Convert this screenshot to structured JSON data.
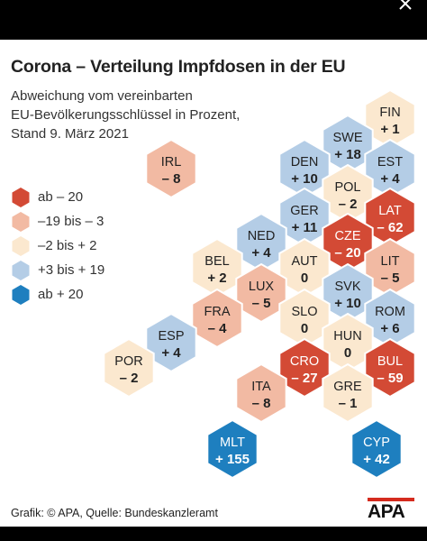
{
  "title": "Corona – Verteilung Impfdosen in der EU",
  "subtitle": {
    "line1": "Abweichung vom vereinbarten",
    "line2": "EU-Bevölkerungsschlüssel in Prozent,",
    "line3": "Stand 9. März 2021"
  },
  "legend": [
    {
      "label": "ab – 20",
      "color": "#d34a35"
    },
    {
      "label": "–19 bis – 3",
      "color": "#f2baa3"
    },
    {
      "label": "–2 bis + 2",
      "color": "#fbe8cf"
    },
    {
      "label": "+3 bis + 19",
      "color": "#b4cde6"
    },
    {
      "label": "ab + 20",
      "color": "#1e7fbf"
    }
  ],
  "footer": "Grafik: © APA, Quelle: Bundeskanzleramt",
  "logo": "APA",
  "chart_data": {
    "type": "hexmap",
    "title": "Corona – Verteilung Impfdosen in der EU",
    "unit": "Prozent",
    "countries": [
      {
        "code": "FIN",
        "label": "+ 1",
        "value": 1
      },
      {
        "code": "SWE",
        "label": "+ 18",
        "value": 18
      },
      {
        "code": "IRL",
        "label": "– 8",
        "value": -8
      },
      {
        "code": "DEN",
        "label": "+ 10",
        "value": 10
      },
      {
        "code": "EST",
        "label": "+ 4",
        "value": 4
      },
      {
        "code": "POL",
        "label": "– 2",
        "value": -2
      },
      {
        "code": "GER",
        "label": "+ 11",
        "value": 11
      },
      {
        "code": "LAT",
        "label": "– 62",
        "value": -62
      },
      {
        "code": "NED",
        "label": "+ 4",
        "value": 4
      },
      {
        "code": "CZE",
        "label": "– 20",
        "value": -20
      },
      {
        "code": "BEL",
        "label": "+ 2",
        "value": 2
      },
      {
        "code": "AUT",
        "label": "0",
        "value": 0
      },
      {
        "code": "LIT",
        "label": "– 5",
        "value": -5
      },
      {
        "code": "LUX",
        "label": "– 5",
        "value": -5
      },
      {
        "code": "SVK",
        "label": "+ 10",
        "value": 10
      },
      {
        "code": "FRA",
        "label": "– 4",
        "value": -4
      },
      {
        "code": "SLO",
        "label": "0",
        "value": 0
      },
      {
        "code": "ROM",
        "label": "+ 6",
        "value": 6
      },
      {
        "code": "ESP",
        "label": "+ 4",
        "value": 4
      },
      {
        "code": "HUN",
        "label": "0",
        "value": 0
      },
      {
        "code": "POR",
        "label": "– 2",
        "value": -2
      },
      {
        "code": "CRO",
        "label": "– 27",
        "value": -27
      },
      {
        "code": "BUL",
        "label": "– 59",
        "value": -59
      },
      {
        "code": "ITA",
        "label": "– 8",
        "value": -8
      },
      {
        "code": "GRE",
        "label": "– 1",
        "value": -1
      },
      {
        "code": "MLT",
        "label": "+ 155",
        "value": 155
      },
      {
        "code": "CYP",
        "label": "+ 42",
        "value": 42
      }
    ]
  }
}
